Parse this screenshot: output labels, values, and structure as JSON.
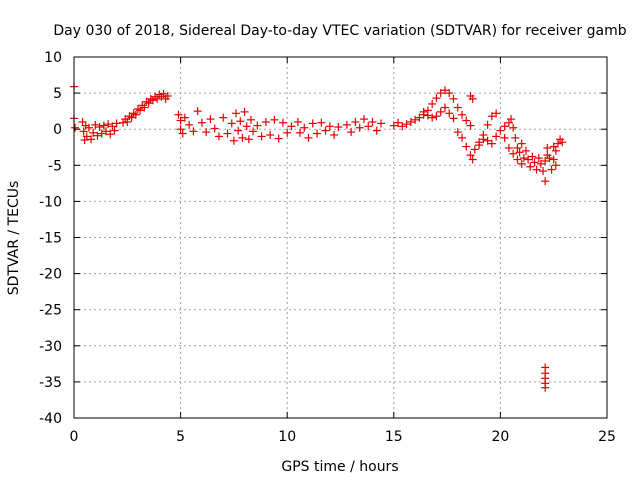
{
  "chart_data": {
    "type": "scatter",
    "title": "Day 030 of 2018, Sidereal Day-to-day VTEC variation (SDTVAR) for receiver gamb",
    "xlabel": "GPS time / hours",
    "ylabel": "SDTVAR / TECUs",
    "xlim": [
      0,
      25
    ],
    "ylim": [
      -40,
      10
    ],
    "xticks": [
      0,
      5,
      10,
      15,
      20,
      25
    ],
    "yticks": [
      10,
      5,
      0,
      -5,
      -10,
      -15,
      -20,
      -25,
      -30,
      -35,
      -40
    ],
    "grid": true,
    "marker": "+",
    "series": [
      {
        "name": "SDTVAR",
        "color": "#e00000",
        "points": [
          [
            0.0,
            5.9
          ],
          [
            0.0,
            1.5
          ],
          [
            0.05,
            0.2
          ],
          [
            0.4,
            1.0
          ],
          [
            0.45,
            -0.3
          ],
          [
            0.5,
            -1.5
          ],
          [
            0.55,
            0.5
          ],
          [
            0.6,
            -1.0
          ],
          [
            0.7,
            0.2
          ],
          [
            0.8,
            -1.4
          ],
          [
            0.9,
            -0.5
          ],
          [
            1.0,
            0.6
          ],
          [
            1.1,
            -0.9
          ],
          [
            1.2,
            0.3
          ],
          [
            1.3,
            -0.6
          ],
          [
            1.4,
            0.5
          ],
          [
            1.5,
            -0.3
          ],
          [
            1.6,
            0.7
          ],
          [
            1.7,
            -0.7
          ],
          [
            1.8,
            0.4
          ],
          [
            1.9,
            -0.2
          ],
          [
            2.0,
            0.8
          ],
          [
            2.3,
            0.9
          ],
          [
            2.4,
            1.4
          ],
          [
            2.5,
            1.0
          ],
          [
            2.6,
            1.8
          ],
          [
            2.7,
            1.6
          ],
          [
            2.8,
            2.2
          ],
          [
            2.9,
            2.0
          ],
          [
            3.0,
            2.8
          ],
          [
            3.1,
            2.6
          ],
          [
            3.2,
            3.3
          ],
          [
            3.3,
            3.0
          ],
          [
            3.4,
            3.8
          ],
          [
            3.5,
            3.6
          ],
          [
            3.6,
            4.2
          ],
          [
            3.7,
            4.0
          ],
          [
            3.8,
            4.5
          ],
          [
            3.9,
            4.2
          ],
          [
            4.0,
            4.8
          ],
          [
            4.1,
            4.5
          ],
          [
            4.2,
            4.9
          ],
          [
            4.3,
            4.2
          ],
          [
            4.4,
            4.6
          ],
          [
            4.9,
            2.0
          ],
          [
            5.0,
            1.2
          ],
          [
            5.0,
            0.0
          ],
          [
            5.1,
            -0.6
          ],
          [
            5.2,
            1.6
          ],
          [
            5.4,
            0.6
          ],
          [
            5.6,
            -0.3
          ],
          [
            5.8,
            2.5
          ],
          [
            6.0,
            0.9
          ],
          [
            6.2,
            -0.4
          ],
          [
            6.4,
            1.4
          ],
          [
            6.6,
            0.1
          ],
          [
            6.8,
            -1.0
          ],
          [
            7.0,
            1.6
          ],
          [
            7.2,
            -0.6
          ],
          [
            7.4,
            0.8
          ],
          [
            7.5,
            -1.6
          ],
          [
            7.6,
            2.2
          ],
          [
            7.7,
            -0.2
          ],
          [
            7.8,
            1.1
          ],
          [
            7.9,
            -1.2
          ],
          [
            8.0,
            2.4
          ],
          [
            8.1,
            0.4
          ],
          [
            8.2,
            -1.4
          ],
          [
            8.3,
            1.3
          ],
          [
            8.4,
            -0.3
          ],
          [
            8.6,
            0.5
          ],
          [
            8.8,
            -1.0
          ],
          [
            9.0,
            1.0
          ],
          [
            9.2,
            -0.8
          ],
          [
            9.4,
            1.3
          ],
          [
            9.6,
            -1.3
          ],
          [
            9.8,
            0.9
          ],
          [
            10.0,
            -0.5
          ],
          [
            10.2,
            0.4
          ],
          [
            10.5,
            1.0
          ],
          [
            10.6,
            -0.5
          ],
          [
            10.8,
            0.2
          ],
          [
            11.0,
            -1.2
          ],
          [
            11.2,
            0.8
          ],
          [
            11.4,
            -0.6
          ],
          [
            11.6,
            0.9
          ],
          [
            11.8,
            -0.2
          ],
          [
            12.0,
            0.4
          ],
          [
            12.2,
            -0.8
          ],
          [
            12.4,
            0.3
          ],
          [
            12.8,
            0.6
          ],
          [
            13.0,
            -0.4
          ],
          [
            13.2,
            1.0
          ],
          [
            13.4,
            0.2
          ],
          [
            13.6,
            1.4
          ],
          [
            13.8,
            0.4
          ],
          [
            14.0,
            1.0
          ],
          [
            14.2,
            -0.2
          ],
          [
            14.4,
            0.8
          ],
          [
            15.0,
            0.5
          ],
          [
            15.2,
            0.9
          ],
          [
            15.4,
            0.4
          ],
          [
            15.6,
            0.7
          ],
          [
            15.8,
            1.0
          ],
          [
            16.0,
            1.3
          ],
          [
            16.2,
            1.6
          ],
          [
            16.4,
            2.0
          ],
          [
            16.6,
            2.6
          ],
          [
            16.8,
            3.5
          ],
          [
            17.0,
            4.3
          ],
          [
            17.2,
            5.0
          ],
          [
            17.4,
            5.4
          ],
          [
            17.6,
            5.0
          ],
          [
            17.8,
            4.2
          ],
          [
            18.0,
            3.0
          ],
          [
            18.2,
            2.0
          ],
          [
            18.4,
            1.2
          ],
          [
            18.6,
            0.5
          ],
          [
            16.4,
            2.4
          ],
          [
            16.6,
            1.9
          ],
          [
            16.8,
            1.6
          ],
          [
            17.0,
            1.8
          ],
          [
            17.2,
            2.4
          ],
          [
            17.4,
            3.0
          ],
          [
            17.6,
            2.2
          ],
          [
            17.8,
            1.5
          ],
          [
            18.0,
            -0.4
          ],
          [
            18.2,
            -1.2
          ],
          [
            18.4,
            -2.4
          ],
          [
            18.6,
            -3.6
          ],
          [
            18.7,
            -4.2
          ],
          [
            18.8,
            -2.8
          ],
          [
            19.0,
            -1.8
          ],
          [
            19.2,
            -0.8
          ],
          [
            19.4,
            0.6
          ],
          [
            19.6,
            1.8
          ],
          [
            19.8,
            2.2
          ],
          [
            18.6,
            4.6
          ],
          [
            18.7,
            4.2
          ],
          [
            19.0,
            -2.2
          ],
          [
            19.2,
            -1.4
          ],
          [
            19.4,
            -1.6
          ],
          [
            19.6,
            -2.0
          ],
          [
            19.8,
            -1.0
          ],
          [
            20.0,
            -0.2
          ],
          [
            20.2,
            -1.2
          ],
          [
            20.4,
            -2.6
          ],
          [
            20.6,
            -3.4
          ],
          [
            20.8,
            -4.2
          ],
          [
            21.0,
            -4.8
          ],
          [
            21.1,
            -4.0
          ],
          [
            20.2,
            0.4
          ],
          [
            20.4,
            0.9
          ],
          [
            20.5,
            1.4
          ],
          [
            20.6,
            0.2
          ],
          [
            20.7,
            -1.2
          ],
          [
            20.8,
            -2.6
          ],
          [
            20.9,
            -3.2
          ],
          [
            21.0,
            -2.0
          ],
          [
            21.2,
            -3.0
          ],
          [
            21.3,
            -4.2
          ],
          [
            21.4,
            -5.2
          ],
          [
            21.5,
            -3.8
          ],
          [
            21.6,
            -4.6
          ],
          [
            21.7,
            -5.6
          ],
          [
            21.8,
            -4.0
          ],
          [
            21.9,
            -4.8
          ],
          [
            22.0,
            -5.8
          ],
          [
            22.1,
            -4.4
          ],
          [
            22.2,
            -3.6
          ],
          [
            22.1,
            -7.2
          ],
          [
            22.2,
            -2.6
          ],
          [
            22.3,
            -4.0
          ],
          [
            22.4,
            -5.6
          ],
          [
            22.5,
            -4.2
          ],
          [
            22.6,
            -3.0
          ],
          [
            22.7,
            -2.0
          ],
          [
            22.8,
            -1.4
          ],
          [
            22.9,
            -1.8
          ],
          [
            22.5,
            -2.4
          ],
          [
            22.6,
            -5.0
          ],
          [
            22.1,
            -33.0
          ],
          [
            22.1,
            -33.8
          ],
          [
            22.1,
            -34.5
          ],
          [
            22.1,
            -35.2
          ],
          [
            22.1,
            -35.8
          ]
        ]
      }
    ]
  }
}
